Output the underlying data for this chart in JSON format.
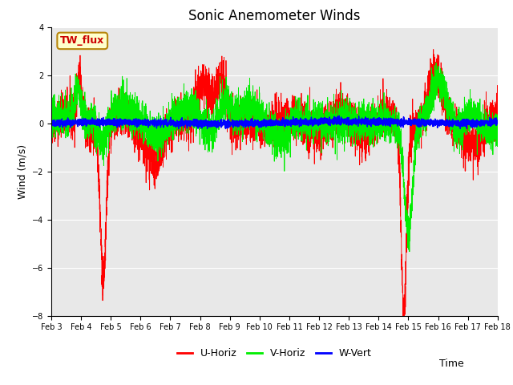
{
  "title": "Sonic Anemometer Winds",
  "xlabel": "Time",
  "ylabel": "Wind (m/s)",
  "ylim": [
    -8,
    4
  ],
  "yticks": [
    -8,
    -6,
    -4,
    -2,
    0,
    2,
    4
  ],
  "date_labels": [
    "Feb 3",
    "Feb 4",
    "Feb 5",
    "Feb 6",
    "Feb 7",
    "Feb 8",
    "Feb 9",
    "Feb 10",
    "Feb 11",
    "Feb 12",
    "Feb 13",
    "Feb 14",
    "Feb 15",
    "Feb 16",
    "Feb 17",
    "Feb 18"
  ],
  "legend_labels": [
    "U-Horiz",
    "V-Horiz",
    "W-Vert"
  ],
  "colors": {
    "U-Horiz": "#ff0000",
    "V-Horiz": "#00ee00",
    "W-Vert": "#0000ff"
  },
  "annotation_text": "TW_flux",
  "plot_bg_color": "#e8e8e8",
  "title_fontsize": 12,
  "axis_fontsize": 9,
  "tick_fontsize": 7,
  "n_points": 5000,
  "seed": 42
}
